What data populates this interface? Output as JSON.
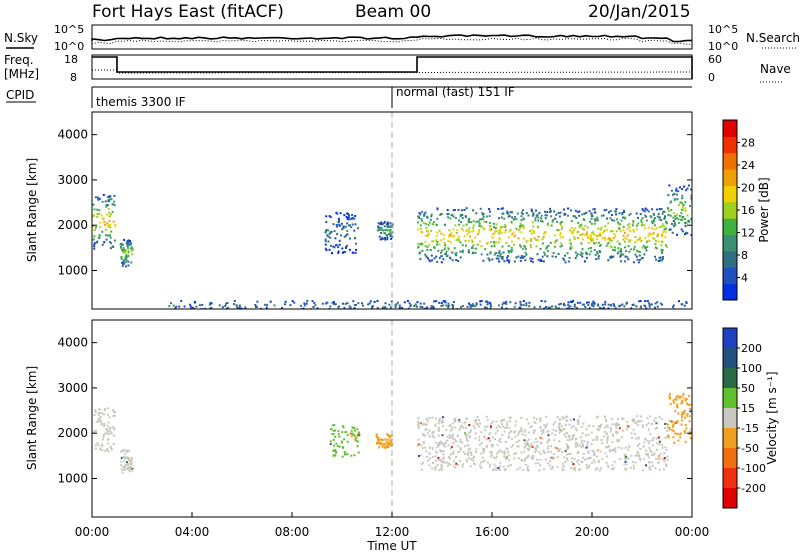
{
  "header": {
    "station": "Fort Hays East (fitACF)",
    "beam": "Beam 00",
    "date": "20/Jan/2015"
  },
  "top_panels": {
    "nsky_label": "N.Sky",
    "nsearch_label": "N.Search",
    "noise_ticks": [
      "10^5",
      "10^0"
    ],
    "freq_label_1": "Freq.",
    "freq_label_2": "[MHz]",
    "freq_ticks": [
      "18",
      "8"
    ],
    "nave_ticks": [
      "60",
      "0"
    ],
    "nave_label": "Nave",
    "cpid_label": "CPID",
    "cpid_segments": [
      {
        "label": "themis 3300 IF",
        "start_h": 0,
        "end_h": 12.0
      },
      {
        "label": "normal (fast) 151 IF",
        "start_h": 12.0,
        "end_h": 24
      }
    ]
  },
  "x_axis": {
    "title": "Time UT",
    "ticks": [
      "00:00",
      "04:00",
      "08:00",
      "12:00",
      "16:00",
      "20:00",
      "00:00"
    ]
  },
  "colors": {
    "power_scale": [
      "#0030e0",
      "#2050c0",
      "#2f6f80",
      "#3a9070",
      "#40b040",
      "#9ed020",
      "#f0d000",
      "#f0a000",
      "#f07000",
      "#f03000",
      "#e00000"
    ],
    "velocity_scale": [
      "#2040c0",
      "#205080",
      "#2a6a48",
      "#60c030",
      "#c8c8c0",
      "#f0a020",
      "#f07010",
      "#f03010",
      "#e00000"
    ]
  },
  "chart_data": [
    {
      "type": "heatmap",
      "title": "",
      "xlabel": "Time UT",
      "ylabel": "Slant Range [km]",
      "xlim": [
        0,
        24
      ],
      "ylim": [
        150,
        4500
      ],
      "yticks": [
        1000,
        2000,
        3000,
        4000
      ],
      "colorbar": {
        "label": "Power [dB]",
        "ticks": [
          4,
          8,
          12,
          16,
          20,
          24,
          28
        ],
        "range": [
          0,
          32
        ]
      },
      "scatter_regions": [
        {
          "t": [
            0.0,
            0.9
          ],
          "range": [
            1500,
            2700
          ],
          "level": 18
        },
        {
          "t": [
            1.1,
            1.6
          ],
          "range": [
            1100,
            1700
          ],
          "level": 14
        },
        {
          "t": [
            9.3,
            10.6
          ],
          "range": [
            1400,
            2300
          ],
          "level": 6
        },
        {
          "t": [
            11.4,
            12.0
          ],
          "range": [
            1700,
            2100
          ],
          "level": 10
        },
        {
          "t": [
            13.0,
            23.0
          ],
          "range": [
            1200,
            2400
          ],
          "level": 18
        },
        {
          "t": [
            23.0,
            24.0
          ],
          "range": [
            1800,
            2900
          ],
          "level": 14
        },
        {
          "t": [
            3.0,
            24.0
          ],
          "range": [
            150,
            350
          ],
          "level": 6
        }
      ]
    },
    {
      "type": "heatmap",
      "title": "",
      "xlabel": "Time UT",
      "ylabel": "Slant Range [km]",
      "xlim": [
        0,
        24
      ],
      "ylim": [
        150,
        4500
      ],
      "yticks": [
        1000,
        2000,
        3000,
        4000
      ],
      "colorbar": {
        "label": "Velocity [m s⁻¹]",
        "ticks": [
          200,
          100,
          50,
          15,
          -15,
          -50,
          -100,
          -200
        ],
        "range": [
          -250,
          250
        ]
      },
      "scatter_regions": [
        {
          "t": [
            0.0,
            0.9
          ],
          "range": [
            1600,
            2600
          ],
          "level": 0
        },
        {
          "t": [
            1.1,
            1.6
          ],
          "range": [
            1150,
            1650
          ],
          "level": 0
        },
        {
          "t": [
            9.5,
            10.7
          ],
          "range": [
            1500,
            2200
          ],
          "level": 20
        },
        {
          "t": [
            11.3,
            12.0
          ],
          "range": [
            1700,
            2000
          ],
          "level": -40
        },
        {
          "t": [
            13.0,
            23.0
          ],
          "range": [
            1200,
            2400
          ],
          "level": 0
        },
        {
          "t": [
            23.0,
            24.0
          ],
          "range": [
            1800,
            2900
          ],
          "level": -30
        }
      ]
    }
  ]
}
